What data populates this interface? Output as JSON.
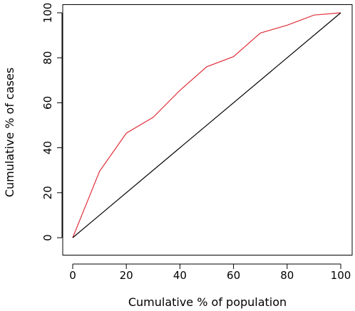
{
  "chart_data": {
    "type": "line",
    "title": "",
    "xlabel": "Cumulative % of population",
    "ylabel": "Cumulative % of cases",
    "xlim": [
      0,
      100
    ],
    "ylim": [
      0,
      100
    ],
    "x_ticks": [
      0,
      20,
      40,
      60,
      80,
      100
    ],
    "y_ticks": [
      0,
      20,
      40,
      60,
      80,
      100
    ],
    "x_tick_labels": [
      "0",
      "20",
      "40",
      "60",
      "80",
      "100"
    ],
    "y_tick_labels": [
      "0",
      "20",
      "40",
      "60",
      "80",
      "100"
    ],
    "grid": false,
    "legend": "none",
    "series": [
      {
        "color": "#e0303a",
        "x": [
          0,
          10,
          20,
          30,
          40,
          50,
          60,
          70,
          80,
          90,
          100
        ],
        "y": [
          0,
          29.5,
          46.5,
          53.5,
          65.5,
          76.0,
          80.5,
          91.0,
          94.5,
          99.0,
          100
        ]
      },
      {
        "color": "#000000",
        "x": [
          0,
          100
        ],
        "y": [
          0,
          100
        ]
      }
    ]
  }
}
